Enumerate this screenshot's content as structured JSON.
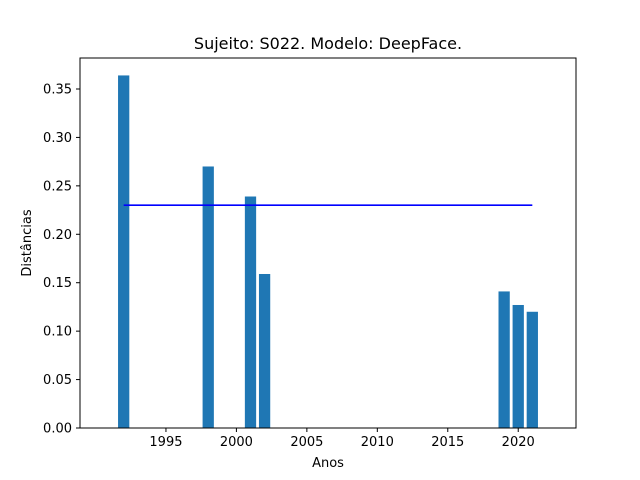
{
  "chart_data": {
    "type": "bar",
    "title": "Sujeito: S022. Modelo: DeepFace.",
    "xlabel": "Anos",
    "ylabel": "Distâncias",
    "x": [
      1992,
      1998,
      2001,
      2002,
      2019,
      2020,
      2021
    ],
    "values": [
      0.364,
      0.27,
      0.239,
      0.159,
      0.141,
      0.127,
      0.12
    ],
    "bar_color": "#1f77b4",
    "reference_line": {
      "y": 0.23,
      "x_start": 1992,
      "x_end": 2021,
      "color": "#0000ff"
    },
    "xlim": [
      1988.9,
      2024.1
    ],
    "ylim": [
      0,
      0.382
    ],
    "xticks": [
      1995,
      2000,
      2005,
      2010,
      2015,
      2020
    ],
    "yticks": [
      0.0,
      0.05,
      0.1,
      0.15,
      0.2,
      0.25,
      0.3,
      0.35
    ],
    "grid": false,
    "legend": "none"
  }
}
